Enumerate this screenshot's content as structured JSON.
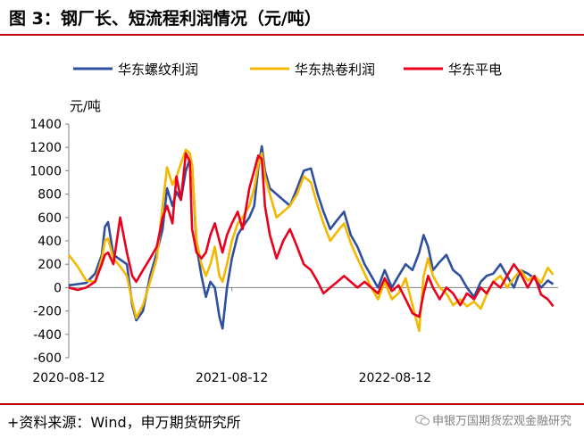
{
  "header": {
    "title": "图 3：钢厂长、短流程利润情况（元/吨）"
  },
  "footer": {
    "source": "+资料来源：Wind，申万期货研究所",
    "watermark": "申银万国期货宏观金融研究"
  },
  "colors": {
    "accent_rule": "#c00000",
    "rebar": "#2f4f9f",
    "hrc": "#f5b800",
    "eaf": "#e8001c"
  },
  "chart_data": {
    "type": "line",
    "unit_label": "元/吨",
    "ylim": [
      -600,
      1400
    ],
    "yticks": [
      -600,
      -400,
      -200,
      0,
      200,
      400,
      600,
      800,
      1000,
      1200,
      1400
    ],
    "xlim": [
      "2020-08-12",
      "2023-08-12"
    ],
    "xtick_labels": [
      "2020-08-12",
      "2021-08-12",
      "2022-08-12"
    ],
    "legend_position": "top",
    "grid": false,
    "series": [
      {
        "name": "华东螺纹利润",
        "color": "#2f4f9f",
        "points": [
          [
            "2020-08-12",
            20
          ],
          [
            "2020-09-01",
            30
          ],
          [
            "2020-09-20",
            40
          ],
          [
            "2020-10-10",
            120
          ],
          [
            "2020-10-25",
            280
          ],
          [
            "2020-11-01",
            520
          ],
          [
            "2020-11-08",
            560
          ],
          [
            "2020-11-20",
            280
          ],
          [
            "2020-12-05",
            240
          ],
          [
            "2020-12-20",
            200
          ],
          [
            "2021-01-01",
            -150
          ],
          [
            "2021-01-10",
            -280
          ],
          [
            "2021-01-25",
            -200
          ],
          [
            "2021-02-10",
            100
          ],
          [
            "2021-02-25",
            300
          ],
          [
            "2021-03-10",
            500
          ],
          [
            "2021-03-20",
            850
          ],
          [
            "2021-04-01",
            700
          ],
          [
            "2021-04-10",
            820
          ],
          [
            "2021-04-20",
            750
          ],
          [
            "2021-05-01",
            1000
          ],
          [
            "2021-05-10",
            1100
          ],
          [
            "2021-05-15",
            1050
          ],
          [
            "2021-05-25",
            350
          ],
          [
            "2021-06-05",
            100
          ],
          [
            "2021-06-15",
            -80
          ],
          [
            "2021-06-25",
            50
          ],
          [
            "2021-07-05",
            0
          ],
          [
            "2021-07-15",
            -250
          ],
          [
            "2021-07-22",
            -350
          ],
          [
            "2021-08-01",
            0
          ],
          [
            "2021-08-12",
            250
          ],
          [
            "2021-08-25",
            450
          ],
          [
            "2021-09-05",
            520
          ],
          [
            "2021-09-20",
            600
          ],
          [
            "2021-10-01",
            700
          ],
          [
            "2021-10-10",
            1020
          ],
          [
            "2021-10-18",
            1210
          ],
          [
            "2021-10-25",
            1000
          ],
          [
            "2021-11-05",
            850
          ],
          [
            "2021-11-20",
            800
          ],
          [
            "2021-12-05",
            750
          ],
          [
            "2021-12-20",
            700
          ],
          [
            "2022-01-05",
            850
          ],
          [
            "2022-01-20",
            1000
          ],
          [
            "2022-02-05",
            1020
          ],
          [
            "2022-02-20",
            800
          ],
          [
            "2022-03-05",
            650
          ],
          [
            "2022-03-20",
            500
          ],
          [
            "2022-04-05",
            580
          ],
          [
            "2022-04-20",
            650
          ],
          [
            "2022-05-05",
            450
          ],
          [
            "2022-05-20",
            350
          ],
          [
            "2022-06-05",
            200
          ],
          [
            "2022-06-20",
            100
          ],
          [
            "2022-07-05",
            0
          ],
          [
            "2022-07-20",
            150
          ],
          [
            "2022-08-05",
            0
          ],
          [
            "2022-08-20",
            100
          ],
          [
            "2022-09-05",
            200
          ],
          [
            "2022-09-20",
            150
          ],
          [
            "2022-10-05",
            300
          ],
          [
            "2022-10-15",
            450
          ],
          [
            "2022-10-25",
            350
          ],
          [
            "2022-11-05",
            150
          ],
          [
            "2022-11-20",
            220
          ],
          [
            "2022-12-05",
            280
          ],
          [
            "2022-12-20",
            150
          ],
          [
            "2023-01-05",
            100
          ],
          [
            "2023-01-20",
            0
          ],
          [
            "2023-02-05",
            -80
          ],
          [
            "2023-02-20",
            50
          ],
          [
            "2023-03-05",
            100
          ],
          [
            "2023-03-20",
            120
          ],
          [
            "2023-04-05",
            200
          ],
          [
            "2023-04-20",
            100
          ],
          [
            "2023-05-05",
            0
          ],
          [
            "2023-05-20",
            150
          ],
          [
            "2023-06-05",
            120
          ],
          [
            "2023-06-20",
            80
          ],
          [
            "2023-07-05",
            0
          ],
          [
            "2023-07-20",
            60
          ],
          [
            "2023-08-01",
            30
          ]
        ]
      },
      {
        "name": "华东热卷利润",
        "color": "#f5b800",
        "points": [
          [
            "2020-08-12",
            280
          ],
          [
            "2020-09-01",
            180
          ],
          [
            "2020-09-20",
            60
          ],
          [
            "2020-10-10",
            50
          ],
          [
            "2020-10-25",
            250
          ],
          [
            "2020-11-01",
            400
          ],
          [
            "2020-11-08",
            420
          ],
          [
            "2020-11-20",
            250
          ],
          [
            "2020-12-05",
            180
          ],
          [
            "2020-12-20",
            100
          ],
          [
            "2021-01-01",
            -120
          ],
          [
            "2021-01-10",
            -260
          ],
          [
            "2021-01-25",
            -150
          ],
          [
            "2021-02-10",
            50
          ],
          [
            "2021-02-25",
            250
          ],
          [
            "2021-03-10",
            700
          ],
          [
            "2021-03-20",
            1030
          ],
          [
            "2021-04-01",
            880
          ],
          [
            "2021-04-10",
            950
          ],
          [
            "2021-04-20",
            1060
          ],
          [
            "2021-05-01",
            1180
          ],
          [
            "2021-05-10",
            1150
          ],
          [
            "2021-05-15",
            1050
          ],
          [
            "2021-05-25",
            400
          ],
          [
            "2021-06-05",
            200
          ],
          [
            "2021-06-15",
            100
          ],
          [
            "2021-06-25",
            200
          ],
          [
            "2021-07-05",
            350
          ],
          [
            "2021-07-15",
            100
          ],
          [
            "2021-07-22",
            50
          ],
          [
            "2021-08-01",
            200
          ],
          [
            "2021-08-12",
            400
          ],
          [
            "2021-08-25",
            550
          ],
          [
            "2021-09-05",
            600
          ],
          [
            "2021-09-20",
            700
          ],
          [
            "2021-10-01",
            850
          ],
          [
            "2021-10-10",
            1050
          ],
          [
            "2021-10-18",
            1150
          ],
          [
            "2021-10-25",
            950
          ],
          [
            "2021-11-05",
            800
          ],
          [
            "2021-11-20",
            600
          ],
          [
            "2021-12-05",
            650
          ],
          [
            "2021-12-20",
            700
          ],
          [
            "2022-01-05",
            800
          ],
          [
            "2022-01-20",
            950
          ],
          [
            "2022-02-05",
            900
          ],
          [
            "2022-02-20",
            700
          ],
          [
            "2022-03-05",
            550
          ],
          [
            "2022-03-20",
            400
          ],
          [
            "2022-04-05",
            480
          ],
          [
            "2022-04-20",
            550
          ],
          [
            "2022-05-05",
            380
          ],
          [
            "2022-05-20",
            250
          ],
          [
            "2022-06-05",
            120
          ],
          [
            "2022-06-20",
            0
          ],
          [
            "2022-07-05",
            -100
          ],
          [
            "2022-07-20",
            50
          ],
          [
            "2022-08-05",
            -100
          ],
          [
            "2022-08-20",
            -50
          ],
          [
            "2022-09-05",
            80
          ],
          [
            "2022-09-20",
            -150
          ],
          [
            "2022-10-05",
            -370
          ],
          [
            "2022-10-15",
            100
          ],
          [
            "2022-10-25",
            250
          ],
          [
            "2022-11-05",
            100
          ],
          [
            "2022-11-20",
            0
          ],
          [
            "2022-12-05",
            -50
          ],
          [
            "2022-12-20",
            -150
          ],
          [
            "2023-01-05",
            -100
          ],
          [
            "2023-01-20",
            -160
          ],
          [
            "2023-02-05",
            -120
          ],
          [
            "2023-02-20",
            -180
          ],
          [
            "2023-03-05",
            -60
          ],
          [
            "2023-03-20",
            50
          ],
          [
            "2023-04-05",
            100
          ],
          [
            "2023-04-20",
            0
          ],
          [
            "2023-05-05",
            80
          ],
          [
            "2023-05-20",
            150
          ],
          [
            "2023-06-05",
            60
          ],
          [
            "2023-06-20",
            100
          ],
          [
            "2023-07-05",
            40
          ],
          [
            "2023-07-20",
            170
          ],
          [
            "2023-08-01",
            110
          ]
        ]
      },
      {
        "name": "华东平电",
        "color": "#e8001c",
        "points": [
          [
            "2020-08-12",
            0
          ],
          [
            "2020-09-01",
            -20
          ],
          [
            "2020-09-20",
            0
          ],
          [
            "2020-10-10",
            50
          ],
          [
            "2020-10-25",
            200
          ],
          [
            "2020-11-01",
            280
          ],
          [
            "2020-11-08",
            300
          ],
          [
            "2020-11-20",
            200
          ],
          [
            "2020-12-05",
            600
          ],
          [
            "2020-12-20",
            300
          ],
          [
            "2021-01-01",
            100
          ],
          [
            "2021-01-10",
            50
          ],
          [
            "2021-01-25",
            150
          ],
          [
            "2021-02-10",
            250
          ],
          [
            "2021-02-25",
            350
          ],
          [
            "2021-03-10",
            600
          ],
          [
            "2021-03-20",
            700
          ],
          [
            "2021-04-01",
            550
          ],
          [
            "2021-04-10",
            950
          ],
          [
            "2021-04-20",
            750
          ],
          [
            "2021-05-01",
            1150
          ],
          [
            "2021-05-10",
            1080
          ],
          [
            "2021-05-15",
            500
          ],
          [
            "2021-05-25",
            300
          ],
          [
            "2021-06-05",
            250
          ],
          [
            "2021-06-15",
            300
          ],
          [
            "2021-06-25",
            450
          ],
          [
            "2021-07-05",
            550
          ],
          [
            "2021-07-15",
            400
          ],
          [
            "2021-07-22",
            300
          ],
          [
            "2021-08-01",
            450
          ],
          [
            "2021-08-12",
            550
          ],
          [
            "2021-08-25",
            650
          ],
          [
            "2021-09-05",
            500
          ],
          [
            "2021-09-20",
            850
          ],
          [
            "2021-10-01",
            1000
          ],
          [
            "2021-10-10",
            1130
          ],
          [
            "2021-10-18",
            1100
          ],
          [
            "2021-10-25",
            700
          ],
          [
            "2021-11-05",
            450
          ],
          [
            "2021-11-20",
            250
          ],
          [
            "2021-12-05",
            400
          ],
          [
            "2021-12-20",
            500
          ],
          [
            "2022-01-05",
            350
          ],
          [
            "2022-01-20",
            200
          ],
          [
            "2022-02-05",
            150
          ],
          [
            "2022-02-20",
            50
          ],
          [
            "2022-03-05",
            -50
          ],
          [
            "2022-03-20",
            0
          ],
          [
            "2022-04-05",
            50
          ],
          [
            "2022-04-20",
            100
          ],
          [
            "2022-05-05",
            50
          ],
          [
            "2022-05-20",
            0
          ],
          [
            "2022-06-05",
            50
          ],
          [
            "2022-06-20",
            0
          ],
          [
            "2022-07-05",
            -50
          ],
          [
            "2022-07-20",
            80
          ],
          [
            "2022-08-05",
            -30
          ],
          [
            "2022-08-20",
            20
          ],
          [
            "2022-09-05",
            -100
          ],
          [
            "2022-09-20",
            -220
          ],
          [
            "2022-10-05",
            -250
          ],
          [
            "2022-10-15",
            -50
          ],
          [
            "2022-10-25",
            100
          ],
          [
            "2022-11-05",
            0
          ],
          [
            "2022-11-20",
            -100
          ],
          [
            "2022-12-05",
            0
          ],
          [
            "2022-12-20",
            -50
          ],
          [
            "2023-01-05",
            -150
          ],
          [
            "2023-01-20",
            -50
          ],
          [
            "2023-02-05",
            -100
          ],
          [
            "2023-02-20",
            0
          ],
          [
            "2023-03-05",
            -50
          ],
          [
            "2023-03-20",
            50
          ],
          [
            "2023-04-05",
            0
          ],
          [
            "2023-04-20",
            100
          ],
          [
            "2023-05-05",
            200
          ],
          [
            "2023-05-20",
            120
          ],
          [
            "2023-06-05",
            0
          ],
          [
            "2023-06-20",
            100
          ],
          [
            "2023-07-05",
            -60
          ],
          [
            "2023-07-20",
            -100
          ],
          [
            "2023-08-01",
            -160
          ]
        ]
      }
    ]
  }
}
